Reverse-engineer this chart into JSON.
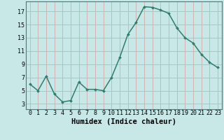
{
  "x": [
    0,
    1,
    2,
    3,
    4,
    5,
    6,
    7,
    8,
    9,
    10,
    11,
    12,
    13,
    14,
    15,
    16,
    17,
    18,
    19,
    20,
    21,
    22,
    23
  ],
  "y": [
    6.0,
    5.0,
    7.2,
    4.5,
    3.3,
    3.5,
    6.3,
    5.2,
    5.2,
    5.0,
    7.0,
    10.0,
    13.5,
    15.3,
    17.7,
    17.6,
    17.2,
    16.7,
    14.5,
    13.0,
    12.2,
    10.5,
    9.3,
    8.5
  ],
  "line_color": "#2e7d6e",
  "marker": "D",
  "marker_size": 2.0,
  "bg_color": "#c8e8e8",
  "grid_color_h": "#a8c8c8",
  "grid_color_v": "#d4a8a8",
  "xlabel": "Humidex (Indice chaleur)",
  "yticks": [
    3,
    5,
    7,
    9,
    11,
    13,
    15,
    17
  ],
  "xticks": [
    0,
    1,
    2,
    3,
    4,
    5,
    6,
    7,
    8,
    9,
    10,
    11,
    12,
    13,
    14,
    15,
    16,
    17,
    18,
    19,
    20,
    21,
    22,
    23
  ],
  "xlim": [
    -0.5,
    23.5
  ],
  "ylim": [
    2.2,
    18.5
  ],
  "xlabel_fontsize": 7.5,
  "tick_fontsize": 6.0,
  "line_width": 1.1
}
